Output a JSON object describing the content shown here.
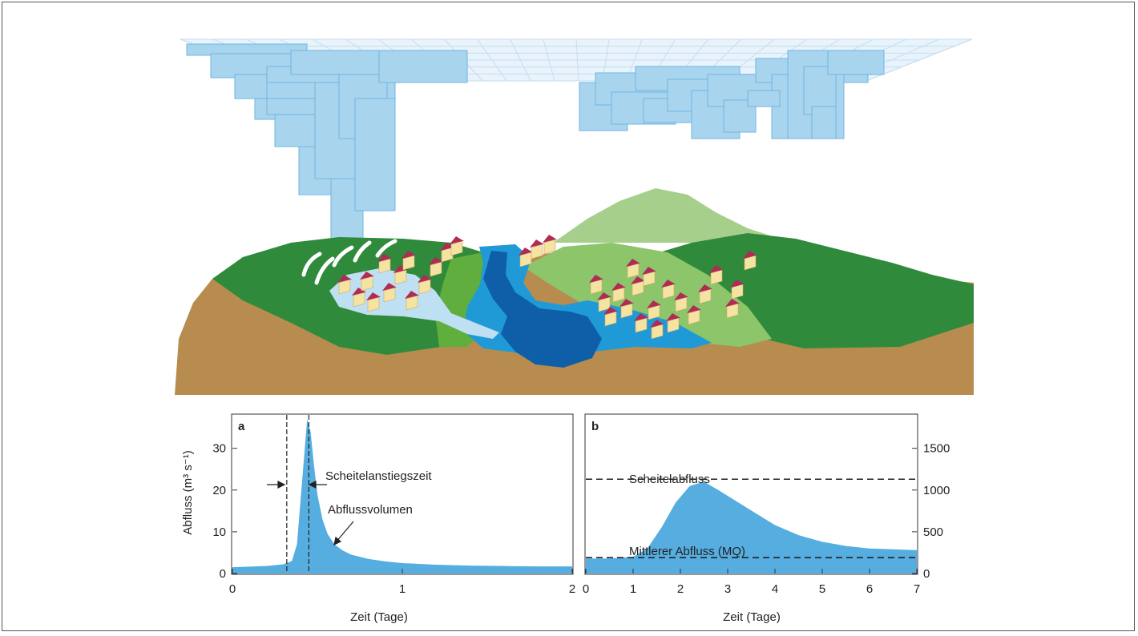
{
  "colors": {
    "cloud": "#a9d4ee",
    "cloud_edge": "#6db6e2",
    "soil": "#b88c4f",
    "dark_green": "#2f8a3c",
    "mid_green": "#5fae3e",
    "light_green": "#8cc56a",
    "pale_green": "#a7cf8c",
    "river_light": "#1f9ad6",
    "river_dark": "#0e5fa8",
    "fill_blue": "#56ade0",
    "roof": "#b02b55",
    "house": "#f5e3a1"
  },
  "panel_a": {
    "label": "a",
    "ylabel": "Abfluss (m³ s⁻¹)",
    "xlabel": "Zeit (Tage)",
    "annotation_rise": "Scheitelanstiegszeit",
    "annotation_volume": "Abflussvolumen"
  },
  "panel_b": {
    "label": "b",
    "xlabel": "Zeit (Tage)",
    "annotation_peak": "Scheitelabfluss",
    "annotation_mean": "Mittlerer Abfluss (MQ)"
  },
  "chart_data": [
    {
      "type": "area",
      "panel": "a",
      "xlabel": "Zeit (Tage)",
      "ylabel": "Abfluss (m³ s⁻¹)",
      "xlim": [
        0,
        2
      ],
      "ylim": [
        0,
        38
      ],
      "xticks": [
        0,
        1,
        2
      ],
      "yticks": [
        0,
        10,
        20,
        30
      ],
      "x": [
        0,
        0.2,
        0.3,
        0.35,
        0.38,
        0.41,
        0.44,
        0.46,
        0.48,
        0.5,
        0.53,
        0.56,
        0.6,
        0.65,
        0.7,
        0.8,
        0.9,
        1.0,
        1.2,
        1.4,
        1.6,
        1.8,
        2.0
      ],
      "y": [
        1.5,
        1.8,
        2.2,
        3,
        7,
        22,
        37,
        34,
        26,
        19,
        13,
        9.5,
        7,
        5.5,
        4.5,
        3.5,
        2.9,
        2.5,
        2.1,
        1.9,
        1.8,
        1.7,
        1.7
      ],
      "vlines": [
        0.32,
        0.45
      ]
    },
    {
      "type": "area",
      "panel": "b",
      "xlabel": "Zeit (Tage)",
      "xlim": [
        0,
        7
      ],
      "ylim": [
        0,
        1900
      ],
      "xticks": [
        0,
        1,
        2,
        3,
        4,
        5,
        6,
        7
      ],
      "yticks": [
        0,
        500,
        1000,
        1500
      ],
      "x": [
        0,
        0.5,
        1,
        1.3,
        1.6,
        1.9,
        2.2,
        2.5,
        2.8,
        3.2,
        3.6,
        4,
        4.5,
        5,
        5.5,
        6,
        6.5,
        7
      ],
      "y": [
        180,
        180,
        200,
        300,
        550,
        850,
        1050,
        1100,
        1000,
        860,
        720,
        580,
        460,
        380,
        330,
        300,
        290,
        280
      ],
      "hlines": [
        1130,
        190
      ]
    }
  ]
}
